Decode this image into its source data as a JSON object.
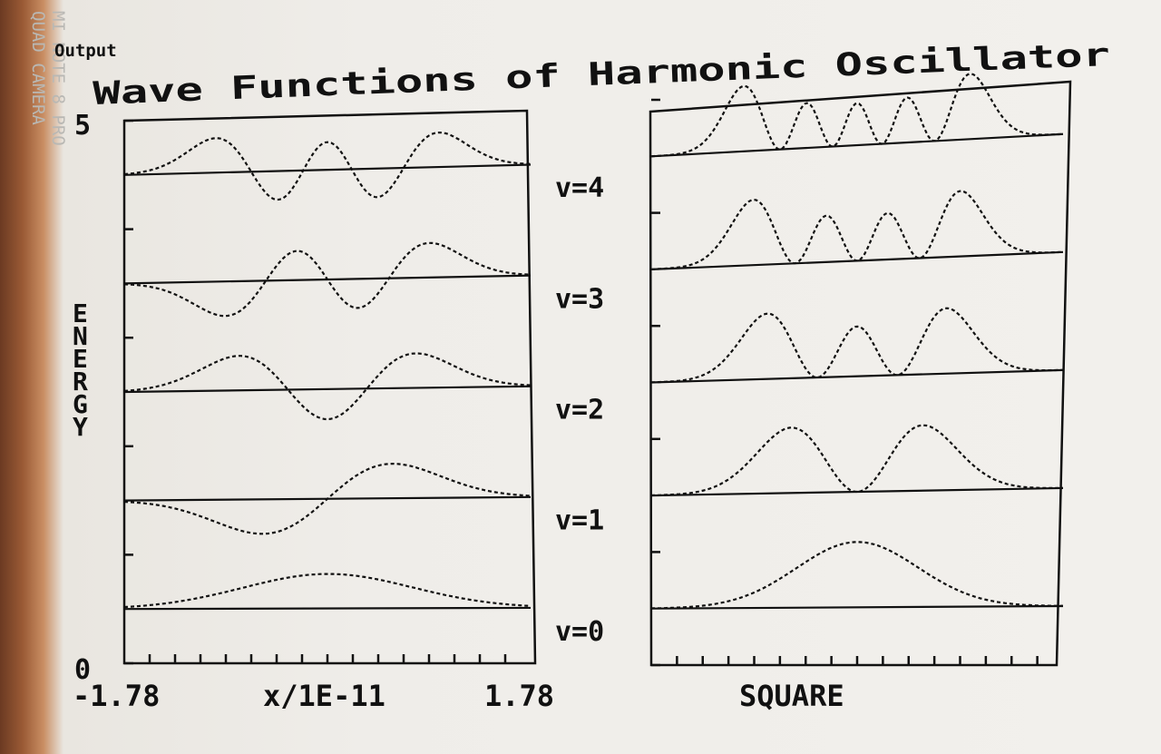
{
  "watermark": "MI NOTE 8 PRO\nQUAD CAMERA",
  "header_label": "Output",
  "chart_data": {
    "type": "line",
    "title": "Wave Functions of Harmonic Oscillator",
    "ylabel": "ENERGY",
    "ytick_top": "5",
    "ytick_bottom": "0",
    "ylim": [
      0,
      5
    ],
    "xlabel": "x/1E-11",
    "xlim": [
      -1.78,
      1.78
    ],
    "xtick_left": "-1.78",
    "xtick_right": "1.78",
    "right_xlabel": "SQUARE",
    "levels": [
      {
        "label": "v=0",
        "n": 0,
        "energy": 0.5
      },
      {
        "label": "v=1",
        "n": 1,
        "energy": 1.5
      },
      {
        "label": "v=2",
        "n": 2,
        "energy": 2.5
      },
      {
        "label": "v=3",
        "n": 3,
        "energy": 3.5
      },
      {
        "label": "v=4",
        "n": 4,
        "energy": 4.5
      }
    ],
    "panels": [
      {
        "name": "wave-function-panel",
        "quantity": "psi"
      },
      {
        "name": "probability-density-panel",
        "quantity": "psi^2"
      }
    ],
    "grid": false
  }
}
